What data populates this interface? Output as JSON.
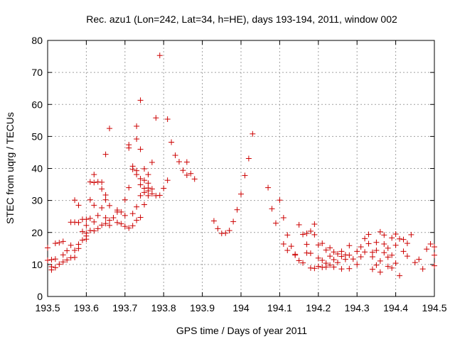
{
  "chart_data": {
    "type": "scatter",
    "title": "Rec. azu1 (Lon=242, Lat=34, h=HE), days 193-194, 2011, window 002",
    "xlabel": "GPS time / Days of year 2011",
    "ylabel": "STEC from uqrg / TECUs",
    "xlim": [
      193.5,
      194.5
    ],
    "ylim": [
      0,
      80
    ],
    "grid": true,
    "marker": "+",
    "marker_color": "#cc0000",
    "x_ticks": [
      193.5,
      193.6,
      193.7,
      193.8,
      193.9,
      194.0,
      194.1,
      194.2,
      194.3,
      194.4,
      194.5
    ],
    "x_tick_labels": [
      "193.5",
      "193.6",
      "193.7",
      "193.8",
      "193.9",
      "194",
      "194.1",
      "194.2",
      "194.3",
      "194.4",
      "194.5"
    ],
    "y_ticks": [
      0,
      10,
      20,
      30,
      40,
      50,
      60,
      70,
      80
    ],
    "y_tick_labels": [
      "0",
      "10",
      "20",
      "30",
      "40",
      "50",
      "60",
      "70",
      "80"
    ],
    "points": [
      [
        193.5,
        15.2
      ],
      [
        193.5,
        11.3
      ],
      [
        193.51,
        11.5
      ],
      [
        193.51,
        8.3
      ],
      [
        193.51,
        9.3
      ],
      [
        193.52,
        9.0
      ],
      [
        193.52,
        16.6
      ],
      [
        193.52,
        11.7
      ],
      [
        193.53,
        10.1
      ],
      [
        193.53,
        16.8
      ],
      [
        193.54,
        10.8
      ],
      [
        193.54,
        13.0
      ],
      [
        193.54,
        17.2
      ],
      [
        193.55,
        11.4
      ],
      [
        193.55,
        14.3
      ],
      [
        193.56,
        12.1
      ],
      [
        193.56,
        16.0
      ],
      [
        193.56,
        23.2
      ],
      [
        193.57,
        12.2
      ],
      [
        193.57,
        14.4
      ],
      [
        193.57,
        23.2
      ],
      [
        193.57,
        30.1
      ],
      [
        193.58,
        16.3
      ],
      [
        193.58,
        23.1
      ],
      [
        193.58,
        15.0
      ],
      [
        193.58,
        28.5
      ],
      [
        193.59,
        17.6
      ],
      [
        193.59,
        20.3
      ],
      [
        193.59,
        24.1
      ],
      [
        193.6,
        17.9
      ],
      [
        193.6,
        18.9
      ],
      [
        193.6,
        24.1
      ],
      [
        193.6,
        19.8
      ],
      [
        193.6,
        22.2
      ],
      [
        193.61,
        20.6
      ],
      [
        193.61,
        24.4
      ],
      [
        193.61,
        30.2
      ],
      [
        193.61,
        35.8
      ],
      [
        193.62,
        20.5
      ],
      [
        193.62,
        23.3
      ],
      [
        193.62,
        28.5
      ],
      [
        193.62,
        35.6
      ],
      [
        193.62,
        38.1
      ],
      [
        193.63,
        21.2
      ],
      [
        193.63,
        25.3
      ],
      [
        193.63,
        35.8
      ],
      [
        193.64,
        22.3
      ],
      [
        193.64,
        27.7
      ],
      [
        193.64,
        33.6
      ],
      [
        193.64,
        35.7
      ],
      [
        193.65,
        22.8
      ],
      [
        193.65,
        24.6
      ],
      [
        193.65,
        30.2
      ],
      [
        193.65,
        31.7
      ],
      [
        193.65,
        44.4
      ],
      [
        193.66,
        22.2
      ],
      [
        193.66,
        23.8
      ],
      [
        193.66,
        28.4
      ],
      [
        193.66,
        52.5
      ],
      [
        193.67,
        24.6
      ],
      [
        193.68,
        23.1
      ],
      [
        193.68,
        27.0
      ],
      [
        193.68,
        26.4
      ],
      [
        193.69,
        22.7
      ],
      [
        193.69,
        26.4
      ],
      [
        193.7,
        21.9
      ],
      [
        193.7,
        30.2
      ],
      [
        193.7,
        25.3
      ],
      [
        193.71,
        21.4
      ],
      [
        193.71,
        34.0
      ],
      [
        193.71,
        46.4
      ],
      [
        193.71,
        47.4
      ],
      [
        193.72,
        22.1
      ],
      [
        193.72,
        25.9
      ],
      [
        193.72,
        39.7
      ],
      [
        193.72,
        40.7
      ],
      [
        193.73,
        23.8
      ],
      [
        193.73,
        28.0
      ],
      [
        193.73,
        38.1
      ],
      [
        193.73,
        39.3
      ],
      [
        193.73,
        49.2
      ],
      [
        193.73,
        53.2
      ],
      [
        193.74,
        24.7
      ],
      [
        193.74,
        31.5
      ],
      [
        193.74,
        34.9
      ],
      [
        193.74,
        36.8
      ],
      [
        193.74,
        46.0
      ],
      [
        193.74,
        61.3
      ],
      [
        193.75,
        28.7
      ],
      [
        193.75,
        32.5
      ],
      [
        193.75,
        36.3
      ],
      [
        193.75,
        33.8
      ],
      [
        193.75,
        39.9
      ],
      [
        193.76,
        31.5
      ],
      [
        193.76,
        33.0
      ],
      [
        193.76,
        33.9
      ],
      [
        193.76,
        35.4
      ],
      [
        193.76,
        38.1
      ],
      [
        193.77,
        32.1
      ],
      [
        193.77,
        33.6
      ],
      [
        193.77,
        41.9
      ],
      [
        193.78,
        31.5
      ],
      [
        193.78,
        55.8
      ],
      [
        193.79,
        31.6
      ],
      [
        193.79,
        75.3
      ],
      [
        193.8,
        33.8
      ],
      [
        193.81,
        36.3
      ],
      [
        193.81,
        55.4
      ],
      [
        193.82,
        48.2
      ],
      [
        193.83,
        44.1
      ],
      [
        193.84,
        42.1
      ],
      [
        193.85,
        39.4
      ],
      [
        193.86,
        37.9
      ],
      [
        193.86,
        42.0
      ],
      [
        193.87,
        38.4
      ],
      [
        193.88,
        36.7
      ],
      [
        193.93,
        23.6
      ],
      [
        193.94,
        21.2
      ],
      [
        193.95,
        19.7
      ],
      [
        193.96,
        19.8
      ],
      [
        193.97,
        20.6
      ],
      [
        193.98,
        23.4
      ],
      [
        193.99,
        27.1
      ],
      [
        194.0,
        32.0
      ],
      [
        194.01,
        37.8
      ],
      [
        194.02,
        43.1
      ],
      [
        194.03,
        50.8
      ],
      [
        194.07,
        34.0
      ],
      [
        194.08,
        27.4
      ],
      [
        194.09,
        22.9
      ],
      [
        194.1,
        30.1
      ],
      [
        194.11,
        24.6
      ],
      [
        194.11,
        16.4
      ],
      [
        194.12,
        19.2
      ],
      [
        194.12,
        14.4
      ],
      [
        194.13,
        15.7
      ],
      [
        194.14,
        13.2
      ],
      [
        194.14,
        12.9
      ],
      [
        194.15,
        22.4
      ],
      [
        194.15,
        11.2
      ],
      [
        194.16,
        19.4
      ],
      [
        194.16,
        10.5
      ],
      [
        194.17,
        19.7
      ],
      [
        194.17,
        16.3
      ],
      [
        194.17,
        13.6
      ],
      [
        194.18,
        8.9
      ],
      [
        194.18,
        20.4
      ],
      [
        194.18,
        13.5
      ],
      [
        194.19,
        8.8
      ],
      [
        194.19,
        19.3
      ],
      [
        194.19,
        22.6
      ],
      [
        194.2,
        9.4
      ],
      [
        194.2,
        16.1
      ],
      [
        194.2,
        12.0
      ],
      [
        194.21,
        9.1
      ],
      [
        194.21,
        16.6
      ],
      [
        194.21,
        11.3
      ],
      [
        194.22,
        10.4
      ],
      [
        194.22,
        14.5
      ],
      [
        194.22,
        9.2
      ],
      [
        194.23,
        15.2
      ],
      [
        194.23,
        12.6
      ],
      [
        194.23,
        9.8
      ],
      [
        194.24,
        13.9
      ],
      [
        194.24,
        11.5
      ],
      [
        194.24,
        9.2
      ],
      [
        194.25,
        13.3
      ],
      [
        194.25,
        10.6
      ],
      [
        194.26,
        14.1
      ],
      [
        194.26,
        12.5
      ],
      [
        194.26,
        8.6
      ],
      [
        194.27,
        13.0
      ],
      [
        194.27,
        11.6
      ],
      [
        194.28,
        15.9
      ],
      [
        194.28,
        12.9
      ],
      [
        194.28,
        8.7
      ],
      [
        194.29,
        11.7
      ],
      [
        194.3,
        14.1
      ],
      [
        194.3,
        10.0
      ],
      [
        194.31,
        15.5
      ],
      [
        194.31,
        12.4
      ],
      [
        194.32,
        18.1
      ],
      [
        194.32,
        13.9
      ],
      [
        194.33,
        19.4
      ],
      [
        194.33,
        16.5
      ],
      [
        194.34,
        13.8
      ],
      [
        194.34,
        12.4
      ],
      [
        194.34,
        8.5
      ],
      [
        194.35,
        16.9
      ],
      [
        194.35,
        9.8
      ],
      [
        194.35,
        14.4
      ],
      [
        194.36,
        20.2
      ],
      [
        194.36,
        11.1
      ],
      [
        194.36,
        7.6
      ],
      [
        194.37,
        19.2
      ],
      [
        194.37,
        16.4
      ],
      [
        194.37,
        13.7
      ],
      [
        194.38,
        15.1
      ],
      [
        194.38,
        12.3
      ],
      [
        194.38,
        9.4
      ],
      [
        194.39,
        18.3
      ],
      [
        194.39,
        12.9
      ],
      [
        194.39,
        8.9
      ],
      [
        194.4,
        19.5
      ],
      [
        194.4,
        16.0
      ],
      [
        194.4,
        10.4
      ],
      [
        194.41,
        18.0
      ],
      [
        194.41,
        6.5
      ],
      [
        194.42,
        17.8
      ],
      [
        194.42,
        14.1
      ],
      [
        194.43,
        12.6
      ],
      [
        194.43,
        16.6
      ],
      [
        194.44,
        19.3
      ],
      [
        194.45,
        10.6
      ],
      [
        194.46,
        11.6
      ],
      [
        194.47,
        8.6
      ],
      [
        194.48,
        14.8
      ],
      [
        194.49,
        16.4
      ],
      [
        194.5,
        12.9
      ],
      [
        194.5,
        9.6
      ],
      [
        194.5,
        15.5
      ]
    ]
  }
}
